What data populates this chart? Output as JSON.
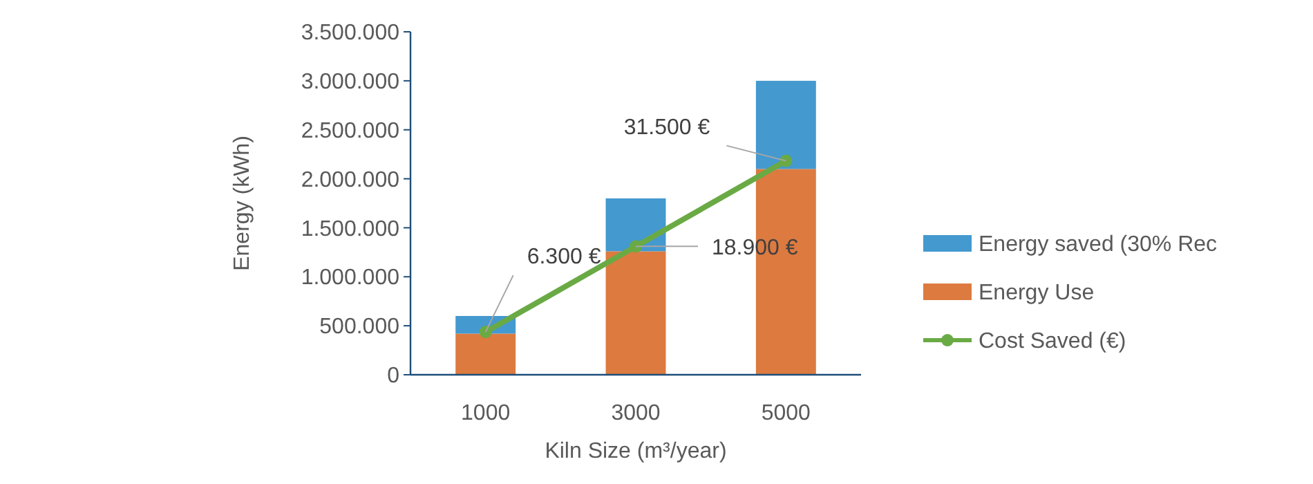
{
  "chart_data": {
    "type": "bar",
    "stacked": true,
    "xlabel": "Kiln Size (m³/year)",
    "ylabel": "Energy (kWh)",
    "categories": [
      "1000",
      "3000",
      "5000"
    ],
    "series": [
      {
        "name": "Energy Use",
        "color": "#dd7a40",
        "values": [
          420000,
          1260000,
          2100000
        ]
      },
      {
        "name": "Energy saved (30% Rec",
        "color": "#4499cf",
        "values": [
          180000,
          540000,
          900000
        ]
      },
      {
        "name": "Cost Saved (€)",
        "type": "line",
        "axis": "y2",
        "color": "#6aaa45",
        "marker": "circle",
        "values": [
          6300,
          18900,
          31500
        ],
        "value_labels": [
          "6.300 €",
          "18.900 €",
          "31.500 €"
        ]
      }
    ],
    "ylim": [
      0,
      3500000
    ],
    "yticks": [
      {
        "value": 0,
        "label": "0"
      },
      {
        "value": 500000,
        "label": "500.000"
      },
      {
        "value": 1000000,
        "label": "1.000.000"
      },
      {
        "value": 1500000,
        "label": "1.500.000"
      },
      {
        "value": 2000000,
        "label": "2.000.000"
      },
      {
        "value": 2500000,
        "label": "2.500.000"
      },
      {
        "value": 3000000,
        "label": "3.000.000"
      },
      {
        "value": 3500000,
        "label": "3.500.000"
      }
    ],
    "y2lim": [
      0,
      50500
    ],
    "tick_labels": "xy",
    "grid": false,
    "legend": "right"
  }
}
